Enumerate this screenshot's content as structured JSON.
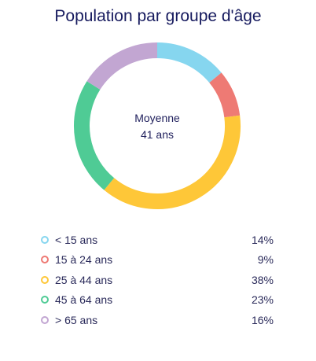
{
  "chart_data": {
    "type": "pie",
    "title": "Population par groupe d'âge",
    "center_text": [
      "Moyenne",
      "41 ans"
    ],
    "categories": [
      "< 15 ans",
      "15 à 24 ans",
      "25 à 44 ans",
      "45 à 64 ans",
      "> 65 ans"
    ],
    "values": [
      14,
      9,
      38,
      23,
      16
    ],
    "value_labels": [
      "14%",
      "9%",
      "38%",
      "23%",
      "16%"
    ],
    "colors": [
      "#86d6ef",
      "#ee7a74",
      "#fec738",
      "#4fcb95",
      "#c2a6d2"
    ],
    "style": "donut",
    "legend_position": "bottom"
  }
}
